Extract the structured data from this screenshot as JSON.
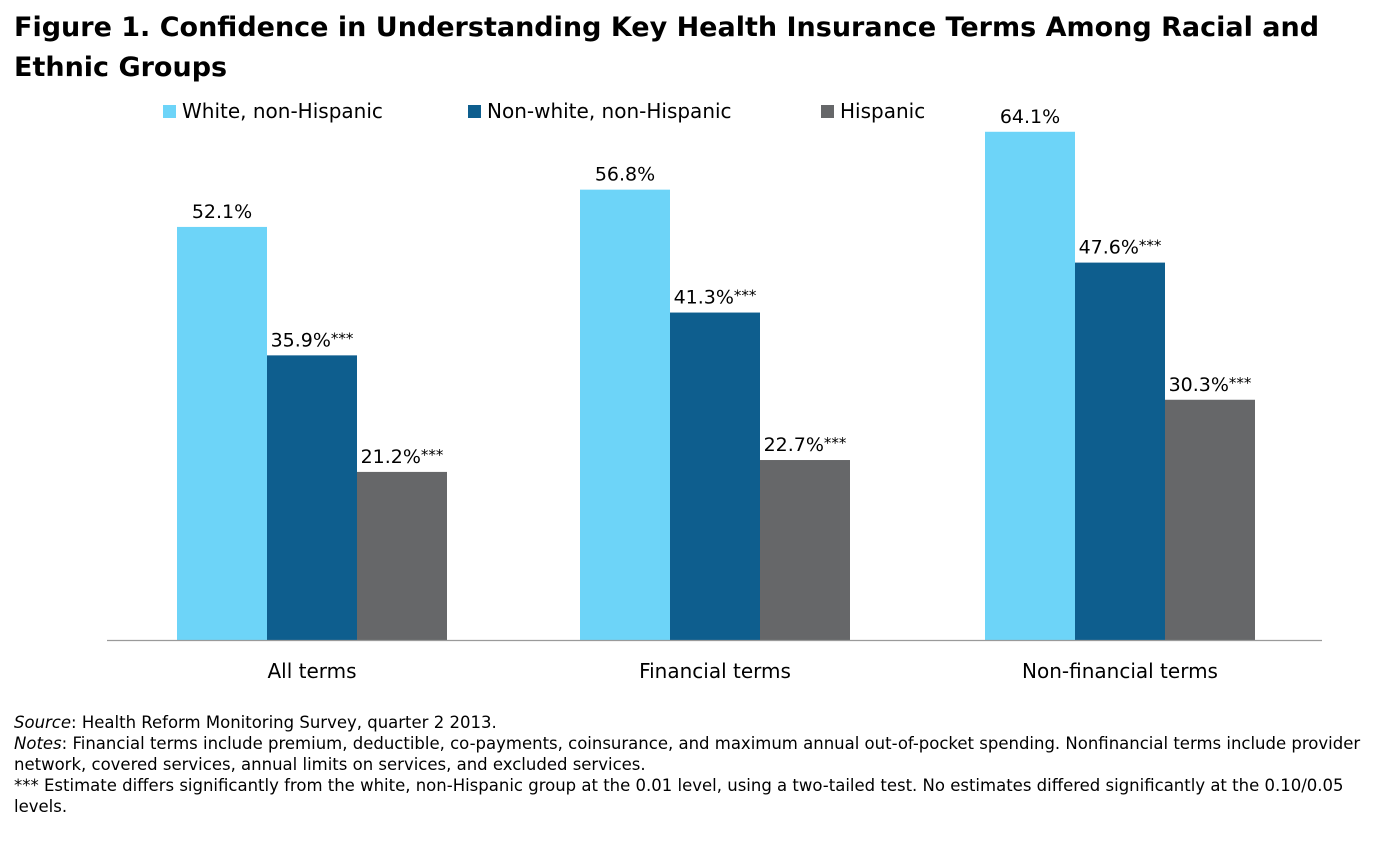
{
  "title": "Figure 1. Confidence in Understanding Key Health Insurance Terms Among Racial and Ethnic Groups",
  "footer": {
    "source_label": "Source",
    "source_text": ": Health Reform Monitoring Survey, quarter 2 2013.",
    "notes_label": "Notes",
    "notes_text": ": Financial terms include premium, deductible, co-payments, coinsurance, and maximum annual out-of-pocket spending.  Nonfinancial terms include provider network, covered services, annual limits on services, and excluded services.",
    "significance_note": "*** Estimate differs significantly from the white, non-Hispanic group at the 0.01 level, using a two-tailed test. No estimates differed significantly at the 0.10/0.05 levels."
  },
  "chart_data": {
    "type": "bar",
    "title": "Figure 1. Confidence in Understanding Key Health Insurance Terms Among Racial and Ethnic Groups",
    "xlabel": "",
    "ylabel": "",
    "ylim": [
      0,
      70
    ],
    "grid": false,
    "legend_position": "top",
    "categories": [
      "All terms",
      "Financial terms",
      "Non-financial terms"
    ],
    "series": [
      {
        "name": "White, non-Hispanic",
        "color": "#6dd4f8",
        "values": [
          52.1,
          56.8,
          64.1
        ],
        "labels": [
          "52.1%",
          "56.8%",
          "64.1%"
        ],
        "sig": [
          "",
          "",
          ""
        ]
      },
      {
        "name": "Non-white, non-Hispanic",
        "color": "#0e5e8e",
        "values": [
          35.9,
          41.3,
          47.6
        ],
        "labels": [
          "35.9%",
          "41.3%",
          "47.6%"
        ],
        "sig": [
          "***",
          "***",
          "***"
        ]
      },
      {
        "name": "Hispanic",
        "color": "#666769",
        "values": [
          21.2,
          22.7,
          30.3
        ],
        "labels": [
          "21.2%",
          "22.7%",
          "30.3%"
        ],
        "sig": [
          "***",
          "***",
          "***"
        ]
      }
    ]
  }
}
